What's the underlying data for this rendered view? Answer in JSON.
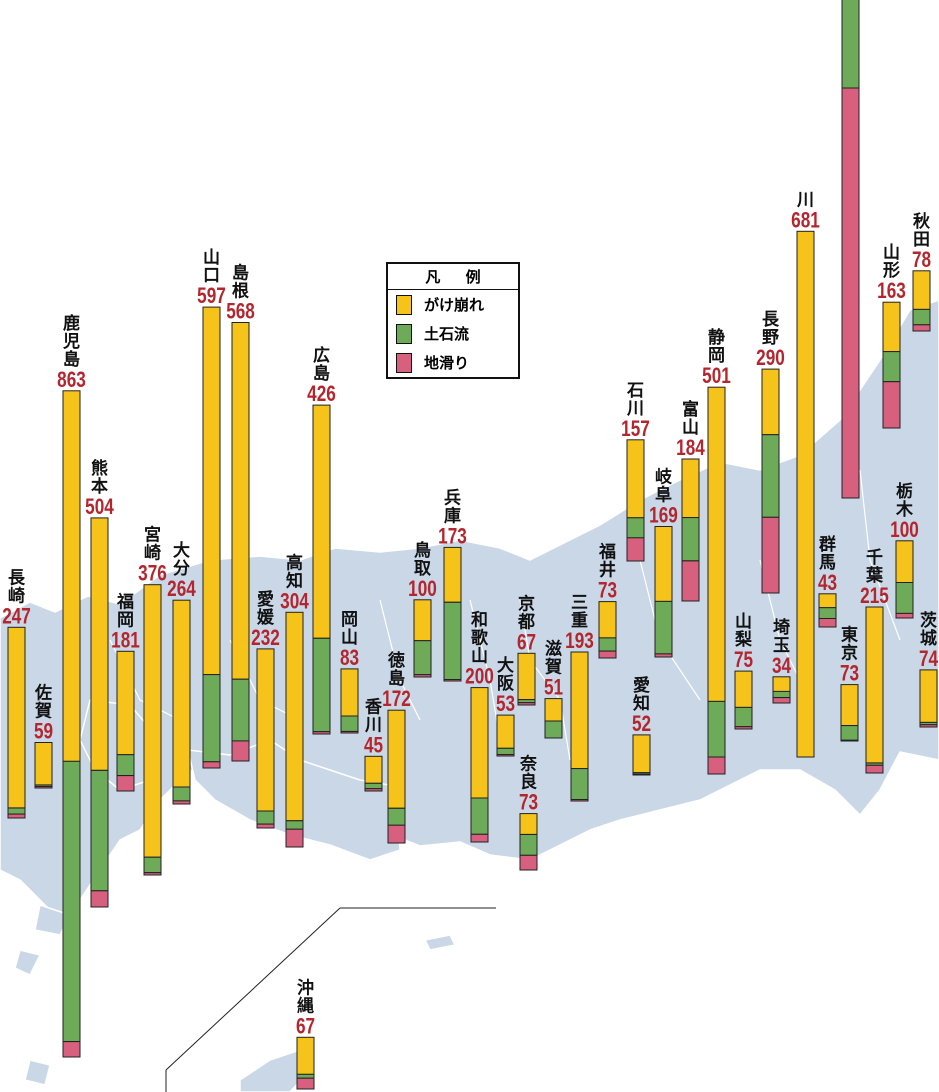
{
  "legend": {
    "title": "凡 例",
    "items": [
      {
        "key": "gake",
        "label": "がけ崩れ",
        "color": "#f5c319"
      },
      {
        "key": "doseki",
        "label": "土石流",
        "color": "#6eab59"
      },
      {
        "key": "jisuberi",
        "label": "地滑り",
        "color": "#d6607e"
      }
    ]
  },
  "chart_data": {
    "type": "bar",
    "stacked": true,
    "legend_position": "center",
    "series": [
      {
        "name": "がけ崩れ",
        "color": "#f5c319"
      },
      {
        "name": "土石流",
        "color": "#6eab59"
      },
      {
        "name": "地滑り",
        "color": "#d6607e"
      }
    ],
    "prefectures": [
      {
        "name": "長崎",
        "total": 247,
        "values": [
          234,
          8,
          5
        ]
      },
      {
        "name": "佐賀",
        "total": 59,
        "values": [
          55,
          2,
          2
        ]
      },
      {
        "name": "鹿児島",
        "total": 863,
        "values": [
          480,
          363,
          20
        ]
      },
      {
        "name": "熊本",
        "total": 504,
        "values": [
          327,
          156,
          21
        ]
      },
      {
        "name": "福岡",
        "total": 181,
        "values": [
          134,
          27,
          20
        ]
      },
      {
        "name": "宮崎",
        "total": 376,
        "values": [
          353,
          20,
          3
        ]
      },
      {
        "name": "大分",
        "total": 264,
        "values": [
          242,
          18,
          4
        ]
      },
      {
        "name": "山口",
        "total": 597,
        "values": [
          476,
          113,
          8
        ]
      },
      {
        "name": "島根",
        "total": 568,
        "values": [
          462,
          80,
          26
        ]
      },
      {
        "name": "愛媛",
        "total": 232,
        "values": [
          210,
          17,
          5
        ]
      },
      {
        "name": "高知",
        "total": 304,
        "values": [
          270,
          11,
          23
        ]
      },
      {
        "name": "広島",
        "total": 426,
        "values": [
          302,
          121,
          3
        ]
      },
      {
        "name": "岡山",
        "total": 83,
        "values": [
          61,
          20,
          2
        ]
      },
      {
        "name": "香川",
        "total": 45,
        "values": [
          35,
          7,
          3
        ]
      },
      {
        "name": "徳島",
        "total": 172,
        "values": [
          127,
          22,
          23
        ]
      },
      {
        "name": "鳥取",
        "total": 100,
        "values": [
          53,
          44,
          3
        ]
      },
      {
        "name": "兵庫",
        "total": 173,
        "values": [
          71,
          100,
          2
        ]
      },
      {
        "name": "和歌山",
        "total": 200,
        "values": [
          143,
          47,
          10
        ]
      },
      {
        "name": "大阪",
        "total": 53,
        "values": [
          43,
          8,
          2
        ]
      },
      {
        "name": "奈良",
        "total": 73,
        "values": [
          27,
          27,
          19
        ]
      },
      {
        "name": "京都",
        "total": 67,
        "values": [
          60,
          4,
          3
        ]
      },
      {
        "name": "滋賀",
        "total": 51,
        "values": [
          29,
          22,
          0
        ]
      },
      {
        "name": "三重",
        "total": 193,
        "values": [
          151,
          40,
          2
        ]
      },
      {
        "name": "福井",
        "total": 73,
        "values": [
          47,
          17,
          9
        ]
      },
      {
        "name": "愛知",
        "total": 52,
        "values": [
          49,
          2,
          1
        ]
      },
      {
        "name": "石川",
        "total": 157,
        "values": [
          101,
          26,
          30
        ]
      },
      {
        "name": "岐阜",
        "total": 169,
        "values": [
          97,
          68,
          4
        ]
      },
      {
        "name": "富山",
        "total": 184,
        "values": [
          76,
          56,
          52
        ]
      },
      {
        "name": "静岡",
        "total": 501,
        "values": [
          407,
          72,
          22
        ]
      },
      {
        "name": "山梨",
        "total": 75,
        "values": [
          47,
          25,
          3
        ]
      },
      {
        "name": "長野",
        "total": 290,
        "values": [
          85,
          107,
          98
        ]
      },
      {
        "name": "埼玉",
        "total": 34,
        "values": [
          19,
          8,
          7
        ]
      },
      {
        "name": "川",
        "total": 681
      },
      {
        "name": "群馬",
        "total": 43,
        "values": [
          18,
          14,
          11
        ]
      },
      {
        "name": "東京",
        "total": 73,
        "values": [
          53,
          19,
          1
        ]
      },
      {
        "name": "千葉",
        "total": 215,
        "values": [
          202,
          3,
          10
        ]
      },
      {
        "name": "栃木",
        "total": 100,
        "values": [
          54,
          40,
          6
        ]
      },
      {
        "name": "山形",
        "total": 163,
        "values": [
          64,
          39,
          60
        ]
      },
      {
        "name": "秋田",
        "total": 78,
        "values": [
          50,
          20,
          8
        ]
      },
      {
        "name": "茨城",
        "total": 74,
        "values": [
          68,
          3,
          3
        ]
      },
      {
        "name": "沖縄",
        "total": 67,
        "values": [
          48,
          5,
          14
        ]
      }
    ]
  }
}
